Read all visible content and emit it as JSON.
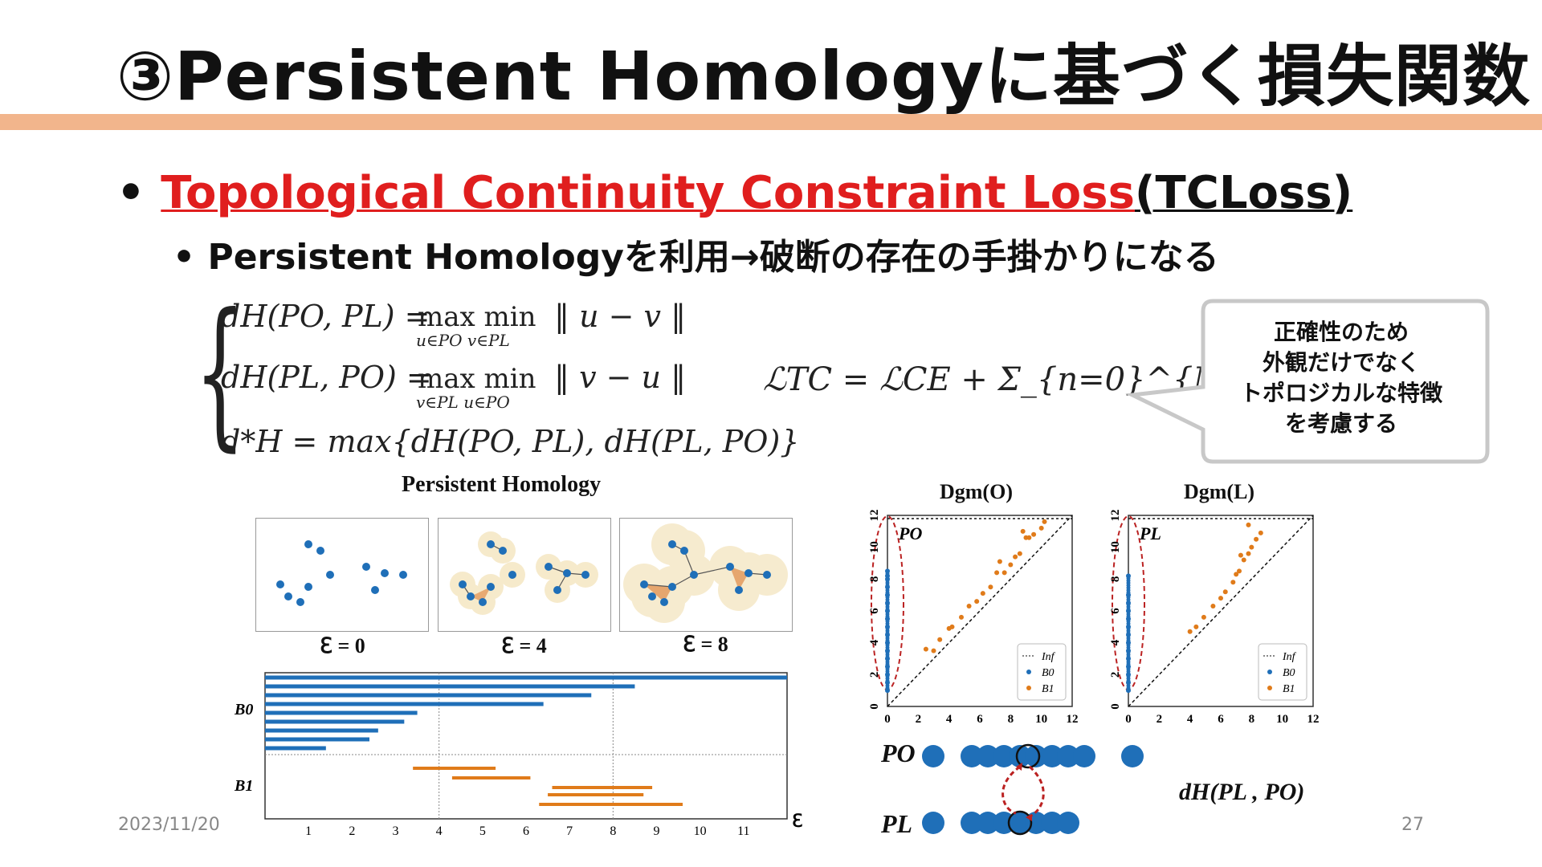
{
  "slide": {
    "title": "③Persistent Homologyに基づく損失関数",
    "footer_date": "2023/11/20",
    "page_number": "27",
    "accent_color": "#f2b58c"
  },
  "bullets": {
    "b1_red": "Topological Continuity Constraint Loss",
    "b1_black": "(TCLoss)",
    "b2": "Persistent Homologyを利用→破断の存在の手掛かりになる"
  },
  "equations": {
    "eq1_lhs": "dH(PO, PL) = ",
    "eq1_op": "max   min",
    "eq1_sub": "u∈PO  v∈PL",
    "eq1_norm": "‖ u − v ‖",
    "eq2_lhs": "dH(PL, PO) = ",
    "eq2_op": "max   min",
    "eq2_sub": "v∈PL  u∈PO",
    "eq2_norm": "‖ v − u ‖",
    "eq3": "d*H = max{dH(PO, PL), dH(PL, PO)}",
    "loss": "ℒTC = ℒCE + Σ_{n=0}^{N} d*H"
  },
  "callout": {
    "line1": "正確性のため",
    "line2": "外観だけでなく",
    "line3": "トポロジカルな特徴",
    "line4": "を考慮する"
  },
  "figure_left": {
    "title": "Persistent Homology",
    "eps_labels": [
      "ℇ = 0",
      "ℇ = 4",
      "ℇ = 8"
    ],
    "barcode_row_labels": [
      "B0",
      "B1"
    ],
    "x_ticks": [
      "1",
      "2",
      "3",
      "4",
      "5",
      "6",
      "7",
      "8",
      "9",
      "10",
      "11"
    ],
    "x_axis_symbol": "ℇ"
  },
  "figure_right": {
    "dgm_o_title": "Dgm(O)",
    "dgm_l_title": "Dgm(L)",
    "po_label": "PO",
    "pl_label": "PL",
    "ticks": [
      "0",
      "2",
      "4",
      "6",
      "8",
      "10",
      "12"
    ],
    "legend": [
      "Inf",
      "B0",
      "B1"
    ],
    "row_label_o": "PO",
    "row_label_l": "PL",
    "distance_label": "dH(PL , PO)"
  },
  "chart_data": [
    {
      "type": "bar",
      "title": "",
      "description_kind": "barcode",
      "xlim": [
        0,
        12
      ],
      "series": [
        {
          "name": "B0",
          "intervals": [
            [
              0,
              12
            ],
            [
              0,
              8.5
            ],
            [
              0,
              7.5
            ],
            [
              0,
              6.4
            ],
            [
              0,
              3.5
            ],
            [
              0,
              3.2
            ],
            [
              0,
              2.6
            ],
            [
              0,
              2.4
            ],
            [
              0,
              1.4
            ]
          ]
        },
        {
          "name": "B1",
          "intervals": [
            [
              3.4,
              5.3
            ],
            [
              4.3,
              6.1
            ],
            [
              6.6,
              8.9
            ],
            [
              6.5,
              8.7
            ],
            [
              6.3,
              9.6
            ]
          ]
        }
      ]
    },
    {
      "type": "scatter",
      "title": "Dgm(O)",
      "xlim": [
        0,
        12
      ],
      "ylim": [
        0,
        12
      ],
      "series": [
        {
          "name": "B0",
          "x": [
            0,
            0,
            0,
            0,
            0,
            0,
            0,
            0,
            0,
            0,
            0,
            0,
            0,
            0,
            0,
            0,
            0
          ],
          "y": [
            1,
            1.5,
            2,
            2.5,
            3,
            3.5,
            4,
            4.5,
            5,
            5.5,
            6,
            6.5,
            7,
            7.5,
            8,
            8.2,
            8.5
          ]
        },
        {
          "name": "B1",
          "x": [
            2.5,
            3,
            3.4,
            4,
            4.2,
            4.8,
            5.3,
            5.8,
            6.2,
            6.7,
            7.1,
            7.6,
            8,
            8.3,
            8.6,
            9,
            9.2,
            9.5,
            10,
            10.2,
            7.3,
            8.8
          ],
          "y": [
            3.6,
            3.5,
            4.2,
            4.9,
            5,
            5.6,
            6.3,
            6.6,
            7.1,
            7.5,
            8.4,
            8.4,
            8.9,
            9.4,
            9.6,
            10.6,
            10.6,
            10.8,
            11.2,
            11.6,
            9.1,
            11
          ]
        }
      ]
    },
    {
      "type": "scatter",
      "title": "Dgm(L)",
      "xlim": [
        0,
        12
      ],
      "ylim": [
        0,
        12
      ],
      "series": [
        {
          "name": "B0",
          "x": [
            0,
            0,
            0,
            0,
            0,
            0,
            0,
            0,
            0,
            0,
            0,
            0,
            0,
            0
          ],
          "y": [
            1,
            1.5,
            2,
            2.5,
            3,
            3.5,
            4,
            4.5,
            5,
            5.5,
            6,
            6.5,
            7,
            8.2
          ]
        },
        {
          "name": "B1",
          "x": [
            4,
            4.4,
            4.9,
            5.5,
            6,
            6.3,
            6.8,
            7,
            7.2,
            7.5,
            7.8,
            8,
            8.3,
            8.6,
            7.3,
            7.8
          ],
          "y": [
            4.7,
            5,
            5.6,
            6.3,
            6.8,
            7.2,
            7.8,
            8.3,
            8.5,
            9.2,
            9.6,
            10,
            10.5,
            10.9,
            9.5,
            11.4
          ]
        }
      ]
    }
  ]
}
